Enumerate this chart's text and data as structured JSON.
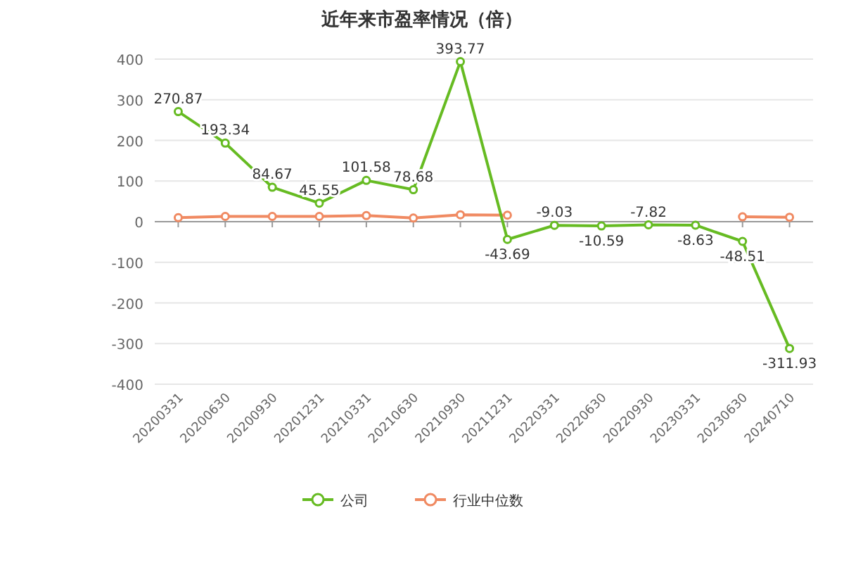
{
  "chart_data": {
    "type": "line",
    "title": "近年来市盈率情况（倍）",
    "categories": [
      "20200331",
      "20200630",
      "20200930",
      "20201231",
      "20210331",
      "20210630",
      "20210930",
      "20211231",
      "20220331",
      "20220630",
      "20220930",
      "20230331",
      "20230630",
      "20240710"
    ],
    "series": [
      {
        "name": "公司",
        "color": "#66bb22",
        "values": [
          270.87,
          193.34,
          84.67,
          45.55,
          101.58,
          78.68,
          393.77,
          -43.69,
          -9.03,
          -10.59,
          -7.82,
          -8.63,
          -48.51,
          -311.93
        ],
        "value_labels": [
          "270.87",
          "193.34",
          "84.67",
          "45.55",
          "101.58",
          "78.68",
          "393.77",
          "-43.69",
          "-9.03",
          "-10.59",
          "-7.82",
          "-8.63",
          "-48.51",
          "-311.93"
        ]
      },
      {
        "name": "行业中位数",
        "color": "#f08a62",
        "values": [
          10,
          13,
          13,
          13,
          15,
          9,
          17,
          16,
          null,
          null,
          null,
          null,
          12,
          11
        ]
      }
    ],
    "ylim": [
      -400,
      400
    ],
    "yticks": [
      -400,
      -300,
      -200,
      -100,
      0,
      100,
      200,
      300,
      400
    ],
    "grid": "y",
    "legend": "bottom",
    "marker": "circle",
    "line_style": "solid"
  }
}
